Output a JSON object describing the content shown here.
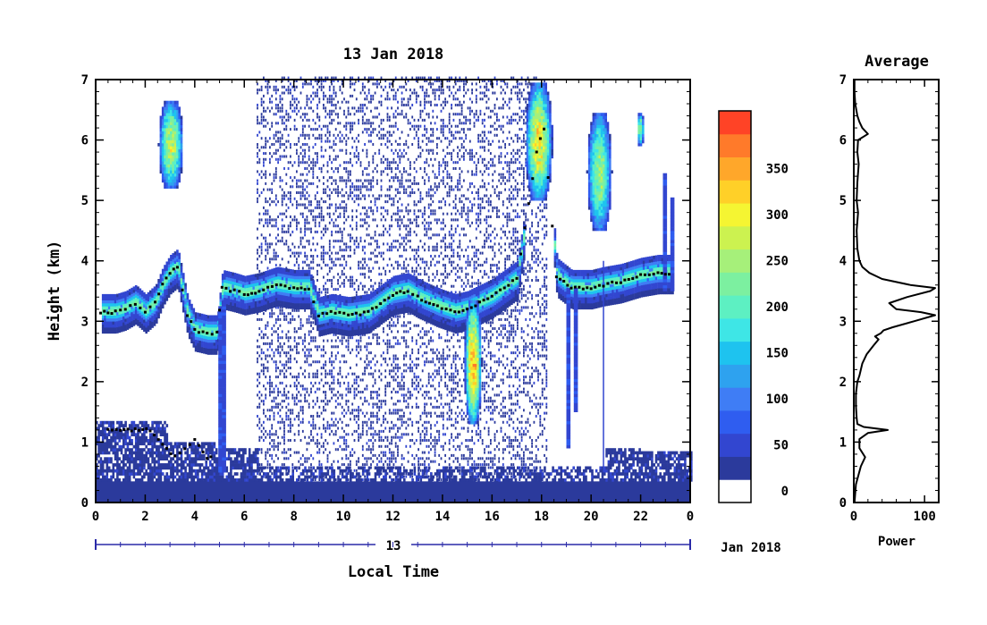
{
  "chart_data": [
    {
      "type": "heatmap",
      "title": "13 Jan 2018",
      "xlabel": "Local Time",
      "ylabel": "Height (km)",
      "xlim": [
        0,
        24
      ],
      "ylim": [
        0,
        7
      ],
      "x_ticks": [
        "0",
        "2",
        "4",
        "6",
        "8",
        "10",
        "12",
        "14",
        "16",
        "18",
        "20",
        "22",
        "0"
      ],
      "y_ticks": [
        "0",
        "1",
        "2",
        "3",
        "4",
        "5",
        "6",
        "7"
      ],
      "date_axis": {
        "day_label": "13",
        "month_label": "Jan 2018"
      },
      "colorbar": {
        "ticks": [
          "0",
          "50",
          "100",
          "150",
          "200",
          "250",
          "300",
          "350"
        ],
        "levels": [
          0,
          25,
          50,
          75,
          100,
          125,
          150,
          175,
          200,
          225,
          250,
          275,
          300,
          325,
          350,
          375
        ],
        "colors": [
          "#2b3a9c",
          "#3246d0",
          "#2f5df0",
          "#3f7df5",
          "#2ea2ef",
          "#1ec3ef",
          "#3ee6e6",
          "#5df0c2",
          "#7cf0a0",
          "#a6f07a",
          "#ccf250",
          "#f5f532",
          "#ffd028",
          "#ffa72a",
          "#ff7a2a",
          "#ff4326"
        ],
        "below_color": "#ffffff"
      },
      "layers": [
        {
          "name": "ground-clutter",
          "x": [
            0,
            24
          ],
          "y_km": [
            0,
            0.35
          ],
          "value": 15
        },
        {
          "name": "boundary-layer",
          "x": [
            0,
            24
          ],
          "y_km": [
            0.35,
            1.4
          ],
          "value": 30
        },
        {
          "name": "noise-field",
          "x": [
            6.5,
            18.2
          ],
          "y_km": [
            0,
            7
          ],
          "value": 20
        },
        {
          "name": "main-cloud-layer",
          "x": [
            0,
            24
          ],
          "y_km": [
            2.5,
            4.0
          ],
          "value": 180
        },
        {
          "name": "cloud-top-echo",
          "x": [
            2.5,
            3.5
          ],
          "y_km": [
            5.2,
            6.6
          ],
          "value": 280
        },
        {
          "name": "cloud-top-echo",
          "x": [
            17.3,
            18.4
          ],
          "y_km": [
            5.0,
            6.9
          ],
          "value": 320
        },
        {
          "name": "cloud-top-echo",
          "x": [
            19.8,
            20.8
          ],
          "y_km": [
            4.5,
            6.4
          ],
          "value": 250
        },
        {
          "name": "cloud-top-echo",
          "x": [
            21.8,
            22.1
          ],
          "y_km": [
            5.9,
            6.4
          ],
          "value": 260
        },
        {
          "name": "precipitation-echo",
          "x": [
            14.8,
            15.6
          ],
          "y_km": [
            1.3,
            3.3
          ],
          "value": 360
        }
      ],
      "peak_line_points": [
        [
          0.2,
          3.15
        ],
        [
          0.8,
          3.15
        ],
        [
          1.2,
          3.2
        ],
        [
          1.6,
          3.3
        ],
        [
          2.0,
          3.15
        ],
        [
          2.4,
          3.3
        ],
        [
          2.7,
          3.6
        ],
        [
          3.0,
          3.8
        ],
        [
          3.3,
          3.9
        ],
        [
          3.7,
          3.1
        ],
        [
          4.0,
          2.85
        ],
        [
          4.5,
          2.8
        ],
        [
          4.9,
          2.8
        ],
        [
          5.1,
          3.55
        ],
        [
          5.6,
          3.5
        ],
        [
          6.0,
          3.45
        ],
        [
          6.6,
          3.5
        ],
        [
          7.3,
          3.6
        ],
        [
          8.0,
          3.55
        ],
        [
          8.6,
          3.55
        ],
        [
          9.0,
          3.1
        ],
        [
          9.5,
          3.15
        ],
        [
          10.2,
          3.1
        ],
        [
          11.0,
          3.15
        ],
        [
          12.0,
          3.45
        ],
        [
          12.6,
          3.5
        ],
        [
          13.0,
          3.4
        ],
        [
          13.8,
          3.25
        ],
        [
          14.5,
          3.15
        ],
        [
          15.0,
          3.2
        ],
        [
          16.0,
          3.4
        ],
        [
          17.0,
          3.7
        ],
        [
          17.8,
          5.8
        ],
        [
          18.1,
          6.2
        ],
        [
          18.6,
          3.75
        ],
        [
          19.2,
          3.55
        ],
        [
          20.0,
          3.55
        ],
        [
          20.5,
          3.6
        ],
        [
          21.2,
          3.65
        ],
        [
          22.0,
          3.75
        ],
        [
          22.7,
          3.8
        ],
        [
          23.3,
          3.8
        ]
      ],
      "peak_line_points_low": [
        [
          0.5,
          1.2
        ],
        [
          1.0,
          1.2
        ],
        [
          1.6,
          1.2
        ],
        [
          2.2,
          1.2
        ],
        [
          3.2,
          0.75
        ],
        [
          3.6,
          0.9
        ],
        [
          4.0,
          1.05
        ],
        [
          4.5,
          0.75
        ],
        [
          4.8,
          0.72
        ]
      ]
    },
    {
      "type": "line",
      "title": "Average",
      "xlabel": "Power",
      "ylabel": "",
      "xlim": [
        0,
        120
      ],
      "ylim": [
        0,
        7
      ],
      "x_ticks": [
        "0",
        "100"
      ],
      "y_ticks": [
        "0",
        "1",
        "2",
        "3",
        "4",
        "5",
        "6",
        "7"
      ],
      "series": [
        {
          "y_km": [
            0.0,
            0.3,
            0.6,
            0.75,
            0.9,
            1.05,
            1.15,
            1.2,
            1.25,
            1.3,
            1.4,
            1.6,
            1.8,
            2.0,
            2.1,
            2.3,
            2.45,
            2.6,
            2.7,
            2.75,
            2.8,
            2.85,
            2.9,
            3.0,
            3.1,
            3.15,
            3.2,
            3.3,
            3.4,
            3.5,
            3.55,
            3.6,
            3.7,
            3.8,
            3.9,
            4.0,
            4.2,
            4.5,
            4.8,
            5.0,
            5.3,
            5.6,
            5.8,
            6.0,
            6.1,
            6.2,
            6.3,
            6.4,
            6.6,
            6.8,
            7.0
          ],
          "power": [
            1,
            3,
            10,
            16,
            8,
            8,
            20,
            48,
            14,
            5,
            4,
            3,
            3,
            5,
            8,
            12,
            18,
            28,
            35,
            30,
            38,
            42,
            55,
            85,
            115,
            95,
            60,
            50,
            75,
            108,
            115,
            80,
            40,
            22,
            12,
            8,
            5,
            4,
            6,
            4,
            5,
            7,
            5,
            6,
            20,
            12,
            8,
            5,
            2,
            1,
            1
          ]
        }
      ]
    }
  ]
}
